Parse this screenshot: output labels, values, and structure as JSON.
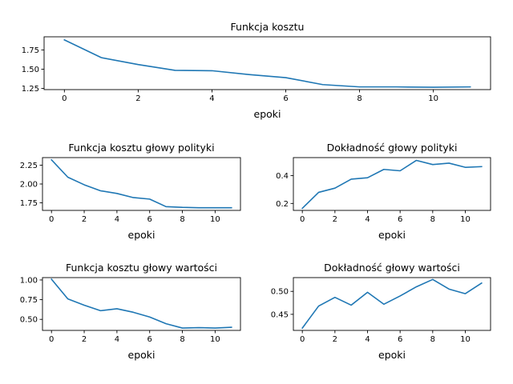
{
  "colors": {
    "series": "#1f77b4"
  },
  "chart_data": [
    {
      "id": "p1",
      "type": "line",
      "title": "Funkcja kosztu",
      "xlabel": "epoki",
      "ylabel": "",
      "x": [
        0,
        1,
        2,
        3,
        4,
        5,
        6,
        7,
        8,
        9,
        10,
        11
      ],
      "values": [
        1.88,
        1.65,
        1.56,
        1.485,
        1.48,
        1.43,
        1.39,
        1.3,
        1.27,
        1.27,
        1.265,
        1.27
      ],
      "xlim": [
        -0.55,
        11.55
      ],
      "ylim": [
        1.235,
        1.92
      ],
      "xticks": [
        0,
        2,
        4,
        6,
        8,
        10
      ],
      "xtick_labels": [
        "0",
        "2",
        "4",
        "6",
        "8",
        "10"
      ],
      "yticks": [
        1.25,
        1.5,
        1.75
      ],
      "ytick_labels": [
        "1.25",
        "1.50",
        "1.75"
      ],
      "grid": false
    },
    {
      "id": "p2",
      "type": "line",
      "title": "Funkcja kosztu głowy polityki",
      "xlabel": "epoki",
      "ylabel": "",
      "x": [
        0,
        1,
        2,
        3,
        4,
        5,
        6,
        7,
        8,
        9,
        10,
        11
      ],
      "values": [
        2.32,
        2.09,
        1.99,
        1.91,
        1.875,
        1.82,
        1.8,
        1.7,
        1.69,
        1.685,
        1.685,
        1.685
      ],
      "xlim": [
        -0.55,
        11.55
      ],
      "ylim": [
        1.65,
        2.35
      ],
      "xticks": [
        0,
        2,
        4,
        6,
        8,
        10
      ],
      "xtick_labels": [
        "0",
        "2",
        "4",
        "6",
        "8",
        "10"
      ],
      "yticks": [
        1.75,
        2.0,
        2.25
      ],
      "ytick_labels": [
        "1.75",
        "2.00",
        "2.25"
      ],
      "grid": false
    },
    {
      "id": "p3",
      "type": "line",
      "title": "Dokładność głowy polityki",
      "xlabel": "epoki",
      "ylabel": "",
      "x": [
        0,
        1,
        2,
        3,
        4,
        5,
        6,
        7,
        8,
        9,
        10,
        11
      ],
      "values": [
        0.165,
        0.28,
        0.31,
        0.375,
        0.385,
        0.445,
        0.435,
        0.51,
        0.48,
        0.49,
        0.46,
        0.465
      ],
      "xlim": [
        -0.55,
        11.55
      ],
      "ylim": [
        0.15,
        0.53
      ],
      "xticks": [
        0,
        2,
        4,
        6,
        8,
        10
      ],
      "xtick_labels": [
        "0",
        "2",
        "4",
        "6",
        "8",
        "10"
      ],
      "yticks": [
        0.2,
        0.4
      ],
      "ytick_labels": [
        "0.2",
        "0.4"
      ],
      "grid": false
    },
    {
      "id": "p4",
      "type": "line",
      "title": "Funkcja kosztu głowy wartości",
      "xlabel": "epoki",
      "ylabel": "",
      "x": [
        0,
        1,
        2,
        3,
        4,
        5,
        6,
        7,
        8,
        9,
        10,
        11
      ],
      "values": [
        1.01,
        0.76,
        0.68,
        0.61,
        0.635,
        0.59,
        0.53,
        0.445,
        0.39,
        0.395,
        0.39,
        0.4
      ],
      "xlim": [
        -0.55,
        11.55
      ],
      "ylim": [
        0.36,
        1.03
      ],
      "xticks": [
        0,
        2,
        4,
        6,
        8,
        10
      ],
      "xtick_labels": [
        "0",
        "2",
        "4",
        "6",
        "8",
        "10"
      ],
      "yticks": [
        0.5,
        0.75,
        1.0
      ],
      "ytick_labels": [
        "0.50",
        "0.75",
        "1.00"
      ],
      "grid": false
    },
    {
      "id": "p5",
      "type": "line",
      "title": "Dokładność głowy wartości",
      "xlabel": "epoki",
      "ylabel": "",
      "x": [
        0,
        1,
        2,
        3,
        4,
        5,
        6,
        7,
        8,
        9,
        10,
        11
      ],
      "values": [
        0.42,
        0.468,
        0.487,
        0.47,
        0.498,
        0.472,
        0.49,
        0.51,
        0.526,
        0.505,
        0.495,
        0.518
      ],
      "xlim": [
        -0.55,
        11.55
      ],
      "ylim": [
        0.415,
        0.53
      ],
      "xticks": [
        0,
        2,
        4,
        6,
        8,
        10
      ],
      "xtick_labels": [
        "0",
        "2",
        "4",
        "6",
        "8",
        "10"
      ],
      "yticks": [
        0.45,
        0.5
      ],
      "ytick_labels": [
        "0.45",
        "0.50"
      ],
      "grid": false
    }
  ]
}
